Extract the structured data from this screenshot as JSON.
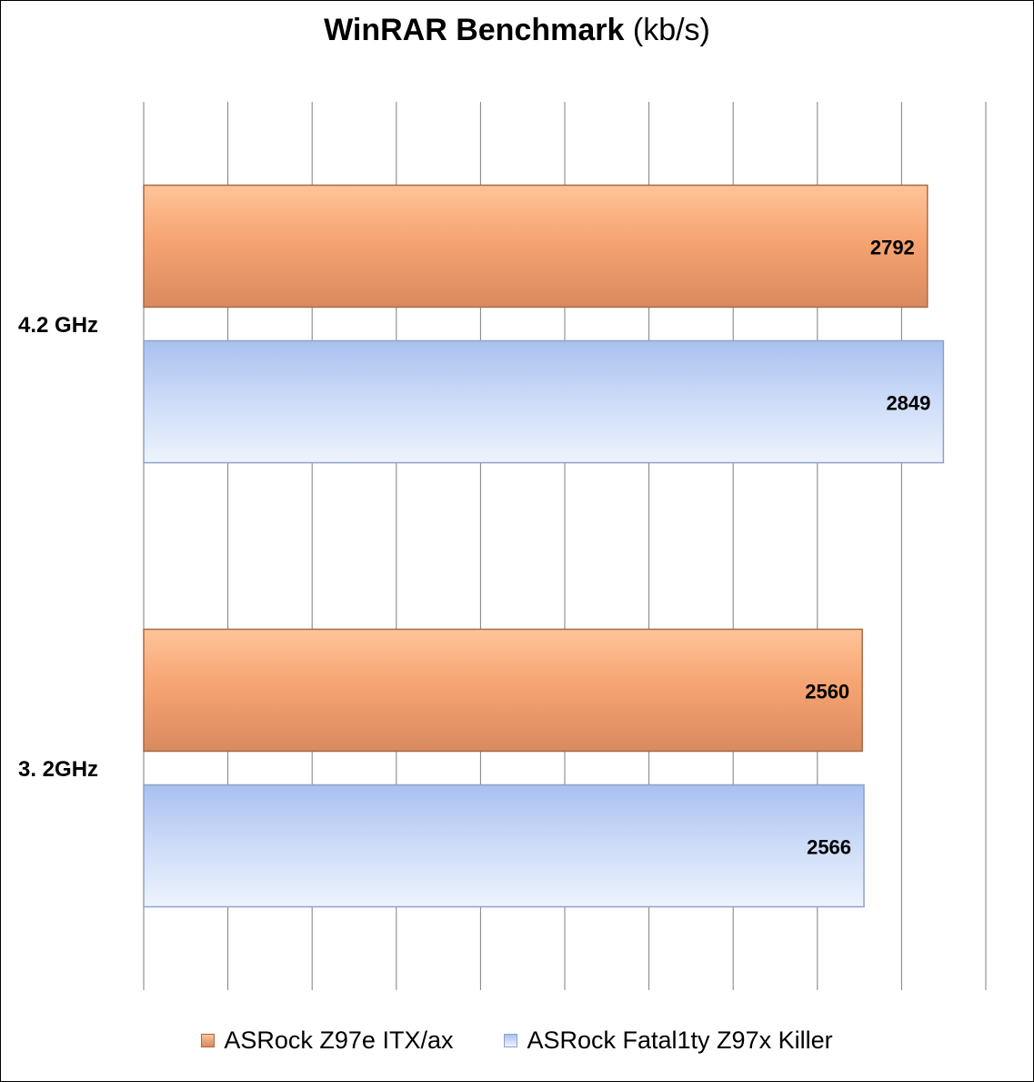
{
  "title": {
    "main": "WinRAR Benchmark",
    "unit": "(kb/s)"
  },
  "chart_data": {
    "type": "bar",
    "orientation": "horizontal",
    "title": "WinRAR Benchmark (kb/s)",
    "xlabel": "",
    "ylabel": "",
    "xlim": [
      0,
      3000
    ],
    "grid": true,
    "categories": [
      "4.2 GHz",
      "3. 2GHz"
    ],
    "series": [
      {
        "name": "ASRock Z97e ITX/ax",
        "values": [
          2792,
          2560
        ],
        "color": "#f0a070"
      },
      {
        "name": "ASRock Fatal1ty Z97x Killer",
        "values": [
          2849,
          2566
        ],
        "color": "#b8ccf4"
      }
    ],
    "legend_position": "bottom"
  }
}
